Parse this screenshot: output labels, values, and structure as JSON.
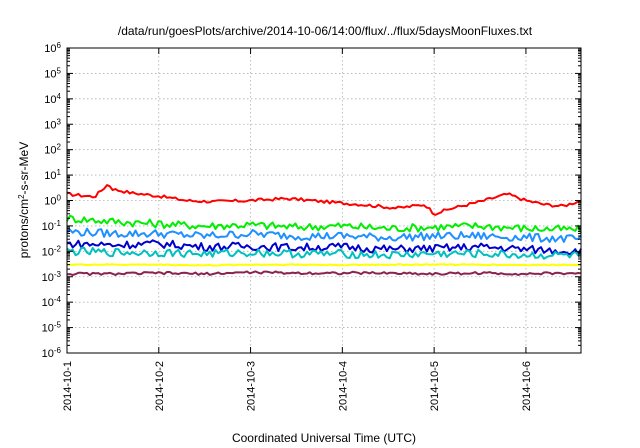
{
  "chart_data": {
    "type": "line",
    "title": "/data/run/goesPlots/archive/2014-10-06/14:00/flux/../flux/5daysMoonFluxes.txt",
    "xlabel": "Coordinated Universal Time (UTC)",
    "ylabel": {
      "base": "protons/cm",
      "sup": "2",
      "rest": "-s-sr-MeV"
    },
    "x_ticks": [
      "2014-10-1",
      "2014-10-2",
      "2014-10-3",
      "2014-10-4",
      "2014-10-5",
      "2014-10-6"
    ],
    "x_range_days": [
      0,
      5.6
    ],
    "y_scale": "log",
    "y_ticks": [
      {
        "base": "10",
        "exp": "-6"
      },
      {
        "base": "10",
        "exp": "-5"
      },
      {
        "base": "10",
        "exp": "-4"
      },
      {
        "base": "10",
        "exp": "-3"
      },
      {
        "base": "10",
        "exp": "-2"
      },
      {
        "base": "10",
        "exp": "-1"
      },
      {
        "base": "10",
        "exp": "0"
      },
      {
        "base": "10",
        "exp": "1"
      },
      {
        "base": "10",
        "exp": "2"
      },
      {
        "base": "10",
        "exp": "3"
      },
      {
        "base": "10",
        "exp": "4"
      },
      {
        "base": "10",
        "exp": "5"
      },
      {
        "base": "10",
        "exp": "6"
      }
    ],
    "ylim": [
      1e-06,
      1000000.0
    ],
    "grid": true,
    "series": [
      {
        "color": "#ff0000",
        "x": [
          0,
          0.3,
          0.45,
          0.5,
          0.7,
          1.0,
          1.3,
          1.6,
          2.0,
          2.4,
          2.8,
          3.2,
          3.6,
          3.9,
          4.0,
          4.2,
          4.5,
          4.8,
          5.0,
          5.2,
          5.4,
          5.6
        ],
        "y": [
          1.8,
          1.4,
          4.5,
          2.8,
          2.0,
          1.5,
          1.0,
          0.9,
          1.0,
          1.2,
          0.9,
          0.7,
          0.5,
          0.7,
          0.3,
          0.5,
          0.9,
          1.8,
          1.0,
          0.7,
          0.6,
          1.0
        ]
      },
      {
        "color": "#00ee00",
        "x": [
          0,
          0.5,
          1.0,
          1.5,
          2.0,
          2.5,
          3.0,
          3.5,
          4.0,
          4.5,
          5.0,
          5.6
        ],
        "y": [
          0.2,
          0.15,
          0.12,
          0.1,
          0.11,
          0.09,
          0.1,
          0.08,
          0.09,
          0.1,
          0.08,
          0.07
        ]
      },
      {
        "color": "#1e90ff",
        "x": [
          0,
          0.5,
          1.0,
          1.5,
          2.0,
          2.5,
          3.0,
          3.5,
          4.0,
          4.5,
          5.0,
          5.6
        ],
        "y": [
          0.06,
          0.05,
          0.05,
          0.04,
          0.05,
          0.04,
          0.04,
          0.035,
          0.04,
          0.04,
          0.035,
          0.03
        ]
      },
      {
        "color": "#0000cd",
        "x": [
          0,
          0.5,
          1.0,
          1.5,
          2.0,
          2.5,
          3.0,
          3.5,
          4.0,
          4.5,
          5.0,
          5.6
        ],
        "y": [
          0.02,
          0.018,
          0.02,
          0.015,
          0.016,
          0.014,
          0.015,
          0.012,
          0.013,
          0.015,
          0.012,
          0.01
        ]
      },
      {
        "color": "#00c0c0",
        "x": [
          0,
          0.5,
          1.0,
          1.5,
          2.0,
          2.5,
          3.0,
          3.5,
          4.0,
          4.5,
          5.0,
          5.6
        ],
        "y": [
          0.01,
          0.009,
          0.009,
          0.008,
          0.009,
          0.008,
          0.008,
          0.007,
          0.008,
          0.008,
          0.007,
          0.007
        ]
      },
      {
        "color": "#ffff00",
        "x": [
          0,
          0.5,
          1.0,
          1.5,
          2.0,
          2.5,
          3.0,
          3.5,
          4.0,
          4.5,
          5.0,
          5.6
        ],
        "y": [
          0.003,
          0.003,
          0.003,
          0.0028,
          0.003,
          0.003,
          0.0029,
          0.003,
          0.003,
          0.003,
          0.0029,
          0.003
        ]
      },
      {
        "color": "#8b2252",
        "x": [
          0,
          0.5,
          1.0,
          1.5,
          2.0,
          2.5,
          3.0,
          3.5,
          4.0,
          4.5,
          5.0,
          5.6
        ],
        "y": [
          0.0013,
          0.0013,
          0.0014,
          0.0013,
          0.0015,
          0.0014,
          0.0014,
          0.0014,
          0.0013,
          0.0014,
          0.0013,
          0.0014
        ]
      }
    ]
  }
}
